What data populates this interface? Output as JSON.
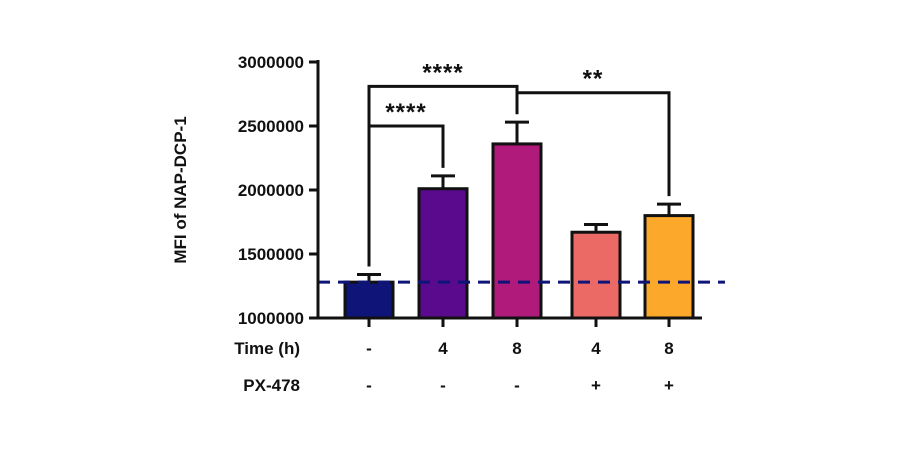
{
  "chart_data": {
    "type": "bar",
    "ylabel": "MFI of NAP-DCP-1",
    "ylim": [
      1000000,
      3000000
    ],
    "yticks": [
      1000000,
      1500000,
      2000000,
      2500000,
      3000000
    ],
    "ytick_labels": [
      "1000000",
      "1500000",
      "2000000",
      "2500000",
      "3000000"
    ],
    "rows": [
      {
        "label": "Time (h)",
        "values": [
          "-",
          "4",
          "8",
          "4",
          "8"
        ]
      },
      {
        "label": "PX-478",
        "values": [
          "-",
          "-",
          "-",
          "+",
          "+"
        ]
      }
    ],
    "bars": [
      {
        "value": 1280000,
        "error": 60000,
        "color": "#0f1478"
      },
      {
        "value": 2010000,
        "error": 100000,
        "color": "#5a0a8c"
      },
      {
        "value": 2360000,
        "error": 170000,
        "color": "#b01a7a"
      },
      {
        "value": 1670000,
        "error": 60000,
        "color": "#ec6a66"
      },
      {
        "value": 1800000,
        "error": 90000,
        "color": "#fca82a"
      }
    ],
    "reference_line": {
      "value": 1280000,
      "color": "#0f1478",
      "style": "dashed"
    },
    "significance": [
      {
        "from": 0,
        "to": 1,
        "label": "****",
        "level": 2500000
      },
      {
        "from": 0,
        "to": 2,
        "label": "****",
        "level": 2810000
      },
      {
        "from": 2,
        "to": 4,
        "label": "**",
        "level": 2760000
      }
    ]
  }
}
